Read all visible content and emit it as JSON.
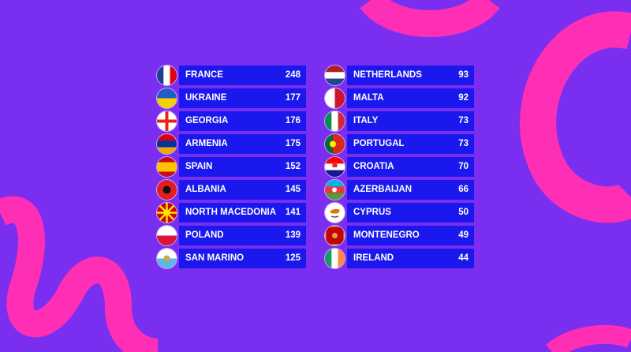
{
  "colors": {
    "background": "#7a2ef0",
    "bar": "#1b18ee",
    "accent": "#ff2fb5"
  },
  "columns": [
    [
      {
        "country": "FRANCE",
        "points": "248",
        "flag": "france-flag"
      },
      {
        "country": "UKRAINE",
        "points": "177",
        "flag": "ukraine-flag"
      },
      {
        "country": "GEORGIA",
        "points": "176",
        "flag": "georgia-flag"
      },
      {
        "country": "ARMENIA",
        "points": "175",
        "flag": "armenia-flag"
      },
      {
        "country": "SPAIN",
        "points": "152",
        "flag": "spain-flag"
      },
      {
        "country": "ALBANIA",
        "points": "145",
        "flag": "albania-flag"
      },
      {
        "country": "NORTH MACEDONIA",
        "points": "141",
        "flag": "north-macedonia-flag"
      },
      {
        "country": "POLAND",
        "points": "139",
        "flag": "poland-flag"
      },
      {
        "country": "SAN MARINO",
        "points": "125",
        "flag": "san-marino-flag"
      }
    ],
    [
      {
        "country": "NETHERLANDS",
        "points": "93",
        "flag": "netherlands-flag"
      },
      {
        "country": "MALTA",
        "points": "92",
        "flag": "malta-flag"
      },
      {
        "country": "ITALY",
        "points": "73",
        "flag": "italy-flag"
      },
      {
        "country": "PORTUGAL",
        "points": "73",
        "flag": "portugal-flag"
      },
      {
        "country": "CROATIA",
        "points": "70",
        "flag": "croatia-flag"
      },
      {
        "country": "AZERBAIJAN",
        "points": "66",
        "flag": "azerbaijan-flag"
      },
      {
        "country": "CYPRUS",
        "points": "50",
        "flag": "cyprus-flag"
      },
      {
        "country": "MONTENEGRO",
        "points": "49",
        "flag": "montenegro-flag"
      },
      {
        "country": "IRELAND",
        "points": "44",
        "flag": "ireland-flag"
      }
    ]
  ]
}
